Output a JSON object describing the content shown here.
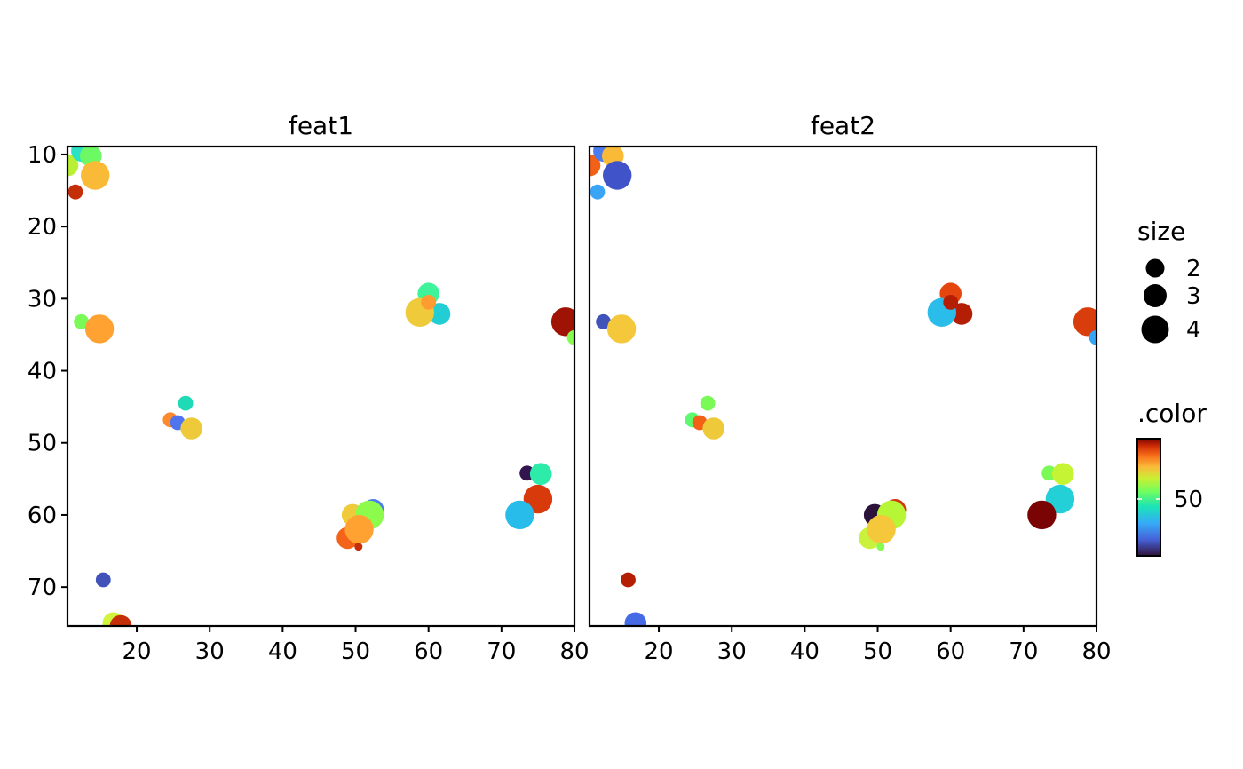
{
  "chart_data": {
    "type": "scatter",
    "y_reversed": true,
    "xlim": [
      10.5,
      80
    ],
    "ylim": [
      75.4,
      8.9
    ],
    "x_ticks": [
      20,
      30,
      40,
      50,
      60,
      70,
      80
    ],
    "y_ticks": [
      10,
      20,
      30,
      40,
      50,
      60,
      70
    ],
    "color_scale": {
      "name": "turbo",
      "min": 23,
      "max": 71,
      "ticks": [
        50
      ]
    },
    "size_scale": {
      "breaks": [
        2,
        3,
        4
      ]
    },
    "legend": {
      "size_title": "size",
      "size_labels": [
        "2",
        "3",
        "4"
      ],
      "color_title": ".color",
      "color_tick_labels": [
        "50"
      ],
      "position": "right"
    },
    "panels": [
      {
        "title": "feat1",
        "points": [
          {
            "x": 10.5,
            "y": 11.5,
            "size": 3,
            "color": "#B9F034"
          },
          {
            "x": 12.5,
            "y": 9.5,
            "size": 3,
            "color": "#2CE2C5"
          },
          {
            "x": 13.7,
            "y": 10.2,
            "size": 3,
            "color": "#6DF964"
          },
          {
            "x": 14.3,
            "y": 12.9,
            "size": 4,
            "color": "#F9BB37"
          },
          {
            "x": 11.6,
            "y": 15.2,
            "size": 2,
            "color": "#C42E08"
          },
          {
            "x": 12.4,
            "y": 33.2,
            "size": 2,
            "color": "#7AFA56"
          },
          {
            "x": 14.9,
            "y": 34.2,
            "size": 4,
            "color": "#FFA232"
          },
          {
            "x": 60.0,
            "y": 29.3,
            "size": 3,
            "color": "#3EF39A"
          },
          {
            "x": 61.5,
            "y": 32.1,
            "size": 3,
            "color": "#22CDD4"
          },
          {
            "x": 58.8,
            "y": 31.9,
            "size": 4,
            "color": "#EFCA3A"
          },
          {
            "x": 60.0,
            "y": 30.5,
            "size": 2,
            "color": "#FF9C31"
          },
          {
            "x": 78.8,
            "y": 33.2,
            "size": 4,
            "color": "#9E1304"
          },
          {
            "x": 80.0,
            "y": 35.4,
            "size": 2,
            "color": "#86FC50"
          },
          {
            "x": 26.7,
            "y": 44.5,
            "size": 2,
            "color": "#1EDBB6"
          },
          {
            "x": 24.6,
            "y": 46.8,
            "size": 2,
            "color": "#FF8A2B"
          },
          {
            "x": 25.6,
            "y": 47.2,
            "size": 2,
            "color": "#4E74EE"
          },
          {
            "x": 27.5,
            "y": 48.0,
            "size": 3,
            "color": "#EECA3A"
          },
          {
            "x": 73.5,
            "y": 54.2,
            "size": 2,
            "color": "#32144E"
          },
          {
            "x": 75.4,
            "y": 54.3,
            "size": 3,
            "color": "#2DEBA8"
          },
          {
            "x": 75.0,
            "y": 57.8,
            "size": 4,
            "color": "#D83A0B"
          },
          {
            "x": 72.5,
            "y": 60.0,
            "size": 4,
            "color": "#28BCEB"
          },
          {
            "x": 52.4,
            "y": 59.3,
            "size": 3,
            "color": "#4A7BEF"
          },
          {
            "x": 49.6,
            "y": 60.0,
            "size": 3,
            "color": "#EFCA3A"
          },
          {
            "x": 51.9,
            "y": 60.0,
            "size": 4,
            "color": "#8CFB4C"
          },
          {
            "x": 48.9,
            "y": 63.2,
            "size": 3,
            "color": "#F4631A"
          },
          {
            "x": 50.5,
            "y": 62.0,
            "size": 4,
            "color": "#FFA232"
          },
          {
            "x": 50.4,
            "y": 64.4,
            "size": 1,
            "color": "#C42E08"
          },
          {
            "x": 15.4,
            "y": 69.0,
            "size": 2,
            "color": "#4153B8"
          },
          {
            "x": 16.8,
            "y": 75.0,
            "size": 3,
            "color": "#D0F53A"
          },
          {
            "x": 17.8,
            "y": 75.4,
            "size": 3,
            "color": "#C42E08"
          }
        ]
      },
      {
        "title": "feat2",
        "points": [
          {
            "x": 10.5,
            "y": 11.5,
            "size": 3,
            "color": "#F26116"
          },
          {
            "x": 12.5,
            "y": 9.5,
            "size": 3,
            "color": "#4A7BEF"
          },
          {
            "x": 13.7,
            "y": 10.2,
            "size": 3,
            "color": "#F9BB37"
          },
          {
            "x": 14.3,
            "y": 12.9,
            "size": 4,
            "color": "#4153C9"
          },
          {
            "x": 11.6,
            "y": 15.2,
            "size": 2,
            "color": "#3AA4F6"
          },
          {
            "x": 12.4,
            "y": 33.2,
            "size": 2,
            "color": "#4153B8"
          },
          {
            "x": 14.9,
            "y": 34.2,
            "size": 4,
            "color": "#F5C73B"
          },
          {
            "x": 60.0,
            "y": 29.3,
            "size": 3,
            "color": "#E4460E"
          },
          {
            "x": 61.5,
            "y": 32.1,
            "size": 3,
            "color": "#B41E05"
          },
          {
            "x": 58.8,
            "y": 31.9,
            "size": 4,
            "color": "#2BBDEA"
          },
          {
            "x": 60.0,
            "y": 30.5,
            "size": 2,
            "color": "#B41E05"
          },
          {
            "x": 78.8,
            "y": 33.2,
            "size": 4,
            "color": "#DA3D0C"
          },
          {
            "x": 80.0,
            "y": 35.4,
            "size": 2,
            "color": "#35A6F5"
          },
          {
            "x": 26.7,
            "y": 44.5,
            "size": 2,
            "color": "#7AFA56"
          },
          {
            "x": 24.6,
            "y": 46.8,
            "size": 2,
            "color": "#5BFA70"
          },
          {
            "x": 25.6,
            "y": 47.2,
            "size": 2,
            "color": "#F26116"
          },
          {
            "x": 27.5,
            "y": 48.0,
            "size": 3,
            "color": "#EECA3A"
          },
          {
            "x": 73.5,
            "y": 54.2,
            "size": 2,
            "color": "#7AFA56"
          },
          {
            "x": 75.4,
            "y": 54.3,
            "size": 3,
            "color": "#C5F434"
          },
          {
            "x": 75.0,
            "y": 57.8,
            "size": 4,
            "color": "#24D0D8"
          },
          {
            "x": 72.5,
            "y": 60.0,
            "size": 4,
            "color": "#7A0403"
          },
          {
            "x": 52.4,
            "y": 59.3,
            "size": 3,
            "color": "#D3340A"
          },
          {
            "x": 49.6,
            "y": 60.0,
            "size": 3,
            "color": "#2A123A"
          },
          {
            "x": 51.9,
            "y": 60.0,
            "size": 4,
            "color": "#B6F636"
          },
          {
            "x": 48.9,
            "y": 63.2,
            "size": 3,
            "color": "#CAF23C"
          },
          {
            "x": 50.5,
            "y": 62.0,
            "size": 4,
            "color": "#F5C73B"
          },
          {
            "x": 50.4,
            "y": 64.4,
            "size": 1,
            "color": "#86FC50"
          },
          {
            "x": 15.8,
            "y": 69.0,
            "size": 2,
            "color": "#B41E05"
          },
          {
            "x": 16.8,
            "y": 75.0,
            "size": 3,
            "color": "#4669E6"
          }
        ]
      }
    ]
  }
}
